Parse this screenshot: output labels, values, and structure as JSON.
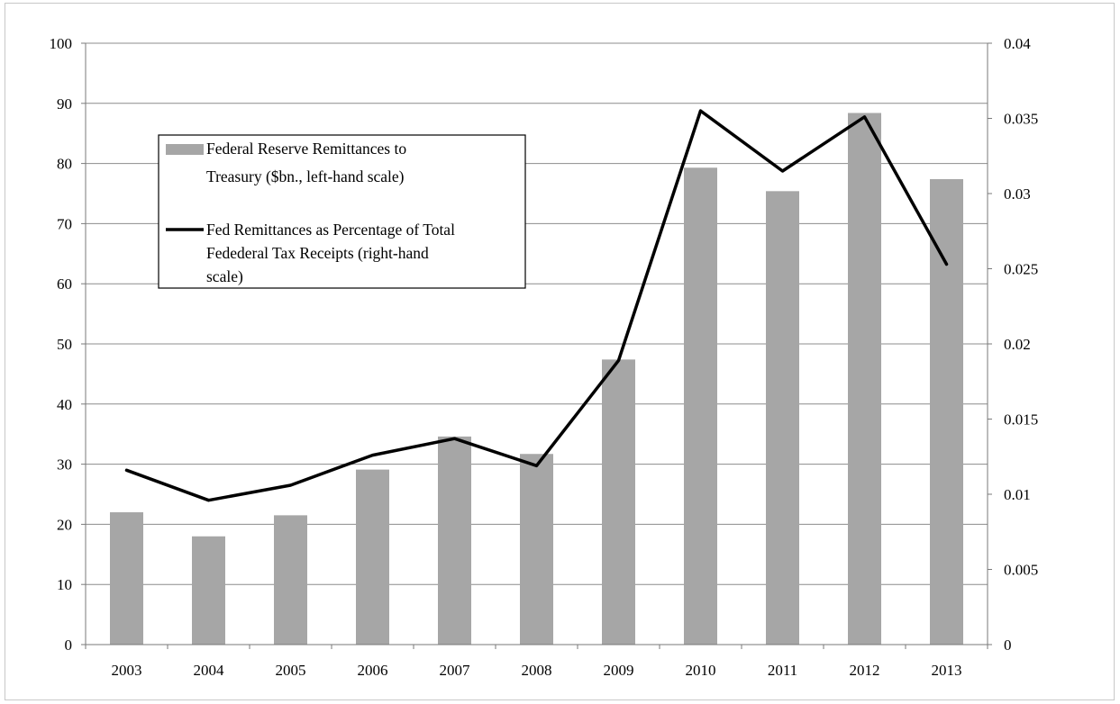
{
  "chart_data": {
    "type": "bar",
    "title": "",
    "xlabel": "",
    "ylabel": "",
    "categories": [
      "2003",
      "2004",
      "2005",
      "2006",
      "2007",
      "2008",
      "2009",
      "2010",
      "2011",
      "2012",
      "2013"
    ],
    "ylim": [
      0,
      100
    ],
    "y2lim": [
      0,
      0.04
    ],
    "y_ticks": [
      "0",
      "10",
      "20",
      "30",
      "40",
      "50",
      "60",
      "70",
      "80",
      "90",
      "100"
    ],
    "y2_ticks": [
      "0",
      "0.005",
      "0.01",
      "0.015",
      "0.02",
      "0.025",
      "0.03",
      "0.035",
      "0.04"
    ],
    "grid": true,
    "legend_position": "upper-left",
    "series": [
      {
        "name": "Federal Reserve Remittances to Treasury ($bn., left-hand scale)",
        "legend_lines": [
          "Federal Reserve Remittances to",
          "Treasury ($bn., left-hand scale)"
        ],
        "type": "bar",
        "axis": "left",
        "color": "#a6a6a6",
        "values": [
          22.0,
          18.0,
          21.5,
          29.1,
          34.6,
          31.7,
          47.4,
          79.3,
          75.4,
          88.4,
          77.4
        ]
      },
      {
        "name": "Fed Remittances as Percentage of Total Fedederal Tax Receipts (right-hand scale)",
        "legend_lines": [
          "Fed Remittances as Percentage of Total",
          "Fedederal Tax Receipts (right-hand",
          "scale)"
        ],
        "type": "line",
        "axis": "right",
        "color": "#000000",
        "values": [
          0.0116,
          0.0096,
          0.0106,
          0.0126,
          0.0137,
          0.0119,
          0.0189,
          0.0355,
          0.0315,
          0.0351,
          0.0253
        ]
      }
    ]
  }
}
